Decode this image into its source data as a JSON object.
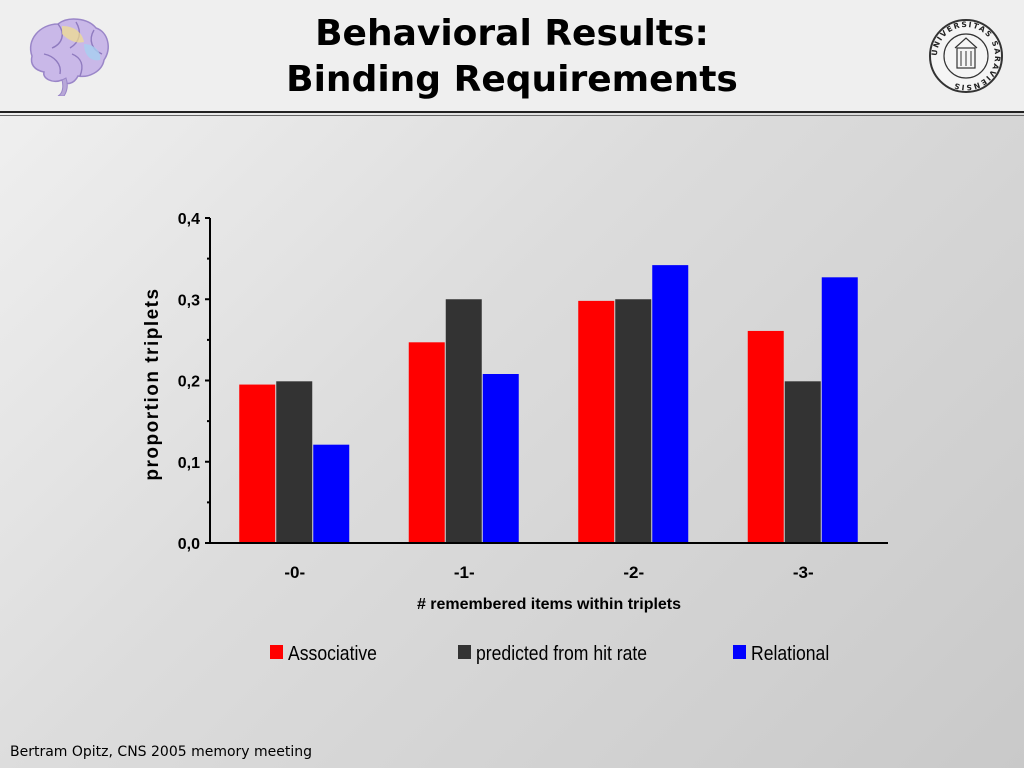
{
  "slide": {
    "title_line1": "Behavioral Results:",
    "title_line2": "Binding Requirements",
    "footer": "Bertram Opitz, CNS 2005 memory meeting"
  },
  "logos": {
    "left_icon": "brain-icon",
    "right_seal_icon": "university-seal-icon",
    "seal_text": "UNIVERSITAS SARAVIENSIS"
  },
  "chart_data": {
    "type": "bar",
    "categories": [
      "-0-",
      "-1-",
      "-2-",
      "-3-"
    ],
    "series": [
      {
        "name": "Associative",
        "color": "#ff0000",
        "values": [
          0.195,
          0.247,
          0.298,
          0.261
        ]
      },
      {
        "name": "predicted from hit rate",
        "color": "#333333",
        "values": [
          0.199,
          0.3,
          0.3,
          0.199
        ]
      },
      {
        "name": "Relational",
        "color": "#0000ff",
        "values": [
          0.121,
          0.208,
          0.342,
          0.327
        ]
      }
    ],
    "ylabel": "proportion triplets",
    "xlabel": "# remembered items within triplets",
    "ylim": [
      0,
      0.4
    ],
    "yticks": [
      0,
      0.1,
      0.2,
      0.3,
      0.4
    ],
    "ytick_labels": [
      "0,0",
      "0,1",
      "0,2",
      "0,3",
      "0,4"
    ],
    "grid": false,
    "legend_position": "bottom"
  }
}
